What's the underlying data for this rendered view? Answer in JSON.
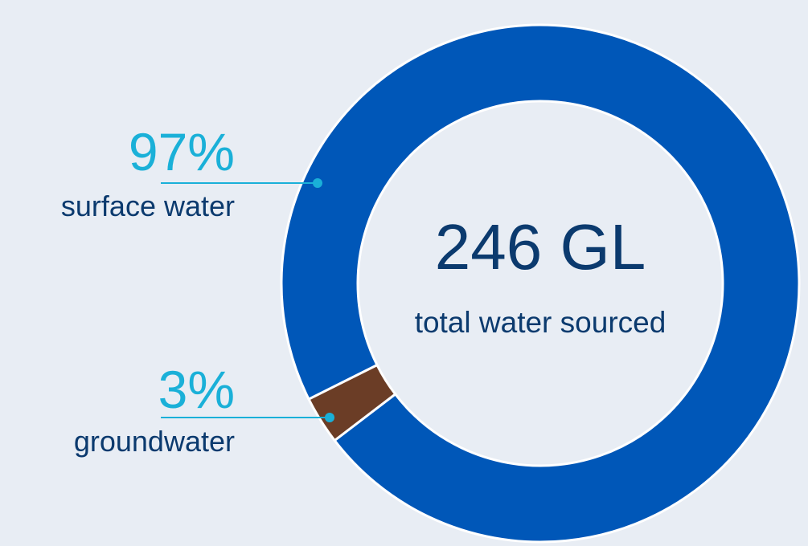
{
  "chart_data": {
    "type": "donut",
    "categories": [
      "surface water",
      "groundwater"
    ],
    "values": [
      97,
      3
    ],
    "value_labels": [
      "97%",
      "3%"
    ],
    "colors": [
      "#0057b8",
      "#6b3d26"
    ],
    "center_value": "246 GL",
    "center_label": "total water sourced"
  }
}
